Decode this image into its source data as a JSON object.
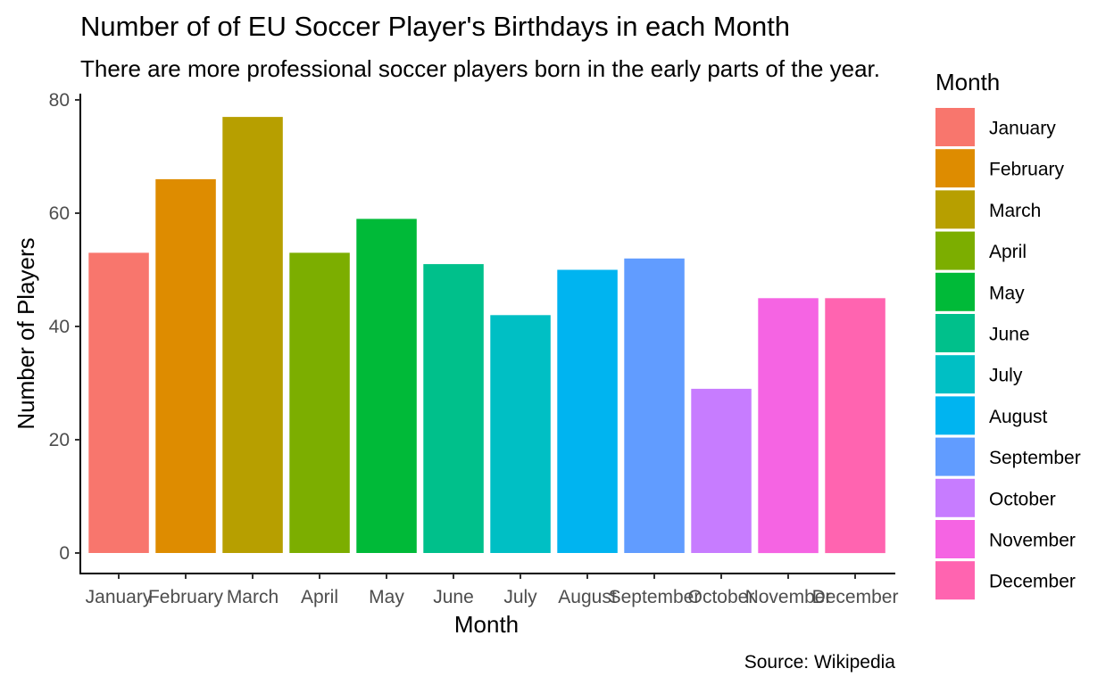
{
  "chart_data": {
    "type": "bar",
    "title": "Number of of EU Soccer Player's Birthdays in each Month",
    "subtitle": "There are more professional soccer players born in the early parts of the year.",
    "caption": "Source: Wikipedia",
    "xlabel": "Month",
    "ylabel": "Number of Players",
    "categories": [
      "January",
      "February",
      "March",
      "April",
      "May",
      "June",
      "July",
      "August",
      "September",
      "October",
      "November",
      "December"
    ],
    "values": [
      53,
      66,
      77,
      53,
      59,
      51,
      42,
      50,
      52,
      29,
      45,
      45
    ],
    "colors": [
      "#F8766D",
      "#DE8C00",
      "#B79F00",
      "#7CAE00",
      "#00BA38",
      "#00C08B",
      "#00BFC4",
      "#00B4F0",
      "#619CFF",
      "#C77CFF",
      "#F564E3",
      "#FF64B0"
    ],
    "ylim": [
      0,
      80
    ],
    "yticks": [
      "0",
      "20",
      "40",
      "60",
      "80"
    ],
    "grid": false,
    "legend": {
      "title": "Month",
      "position": "right"
    }
  }
}
